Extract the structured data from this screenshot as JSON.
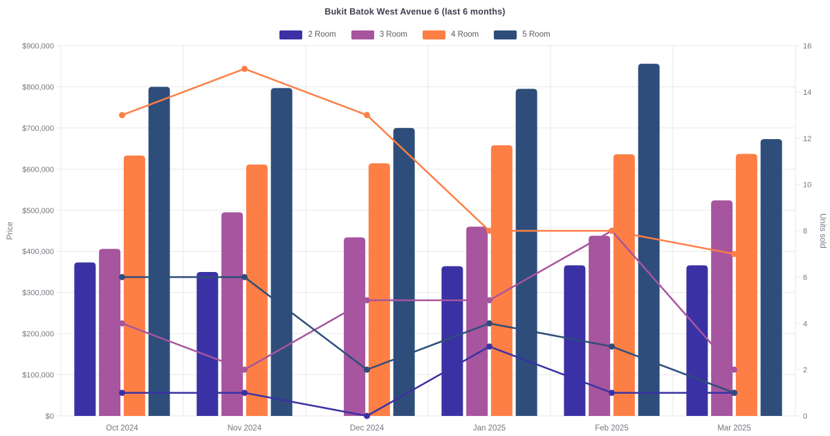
{
  "chart_data": {
    "type": "bar-line-combo",
    "title": "Bukit Batok West Avenue 6 (last 6 months)",
    "categories": [
      "Oct 2024",
      "Nov 2024",
      "Dec 2024",
      "Jan 2025",
      "Feb 2025",
      "Mar 2025"
    ],
    "legend_position": "top",
    "grid": true,
    "left_axis": {
      "label": "Price",
      "min": 0,
      "max": 900000,
      "step": 100000,
      "ticks": [
        "$0",
        "$100,000",
        "$200,000",
        "$300,000",
        "$400,000",
        "$500,000",
        "$600,000",
        "$700,000",
        "$800,000",
        "$900,000"
      ]
    },
    "right_axis": {
      "label": "Units sold",
      "min": 0,
      "max": 16,
      "step": 2,
      "ticks": [
        "0",
        "2",
        "4",
        "6",
        "8",
        "10",
        "12",
        "14",
        "16"
      ]
    },
    "series": [
      {
        "name": "2 Room",
        "color": "#3a32a4",
        "bar_prices": [
          373000,
          350000,
          null,
          364000,
          366000,
          366000
        ],
        "line_units": [
          1,
          1,
          0,
          3,
          1,
          1
        ]
      },
      {
        "name": "3 Room",
        "color": "#a7559e",
        "bar_prices": [
          406000,
          495000,
          434000,
          460000,
          438000,
          524000
        ],
        "line_units": [
          4,
          2,
          5,
          5,
          8,
          2
        ]
      },
      {
        "name": "4 Room",
        "color": "#fd7f45",
        "bar_prices": [
          633000,
          611000,
          614000,
          658000,
          636000,
          637000
        ],
        "line_units": [
          13,
          15,
          13,
          8,
          8,
          7
        ]
      },
      {
        "name": "5 Room",
        "color": "#2f4d7a",
        "bar_prices": [
          800000,
          797000,
          700000,
          795000,
          856000,
          673000
        ],
        "line_units": [
          6,
          6,
          2,
          4,
          3,
          1
        ]
      }
    ]
  },
  "colors": {
    "background": "#ffffff",
    "grid": "#e7e7ea",
    "axis_text": "#76767f",
    "title_text": "#3f4050",
    "legend_text": "#5a5b63"
  }
}
